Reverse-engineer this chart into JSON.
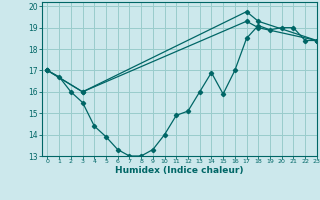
{
  "xlabel": "Humidex (Indice chaleur)",
  "bg_color": "#cce8ec",
  "line_color": "#006666",
  "grid_color": "#99cccc",
  "xlim": [
    -0.5,
    23
  ],
  "ylim": [
    13,
    20.2
  ],
  "yticks": [
    13,
    14,
    15,
    16,
    17,
    18,
    19,
    20
  ],
  "xticks": [
    0,
    1,
    2,
    3,
    4,
    5,
    6,
    7,
    8,
    9,
    10,
    11,
    12,
    13,
    14,
    15,
    16,
    17,
    18,
    19,
    20,
    21,
    22,
    23
  ],
  "line1_x": [
    0,
    1,
    2,
    3,
    4,
    5,
    6,
    7,
    8,
    9,
    10,
    11,
    12,
    13,
    14,
    15,
    16,
    17,
    18,
    19,
    20,
    21,
    22,
    23
  ],
  "line1_y": [
    17.0,
    16.7,
    16.0,
    15.5,
    14.4,
    13.9,
    13.3,
    13.0,
    13.0,
    13.3,
    14.0,
    14.9,
    15.1,
    16.0,
    16.9,
    15.9,
    17.0,
    18.5,
    19.1,
    18.9,
    19.0,
    19.0,
    18.4,
    18.4
  ],
  "line2_x": [
    0,
    3,
    17,
    18,
    23
  ],
  "line2_y": [
    17.0,
    16.0,
    19.75,
    19.3,
    18.4
  ],
  "line3_x": [
    0,
    3,
    17,
    18,
    23
  ],
  "line3_y": [
    17.0,
    16.0,
    19.3,
    19.0,
    18.4
  ]
}
